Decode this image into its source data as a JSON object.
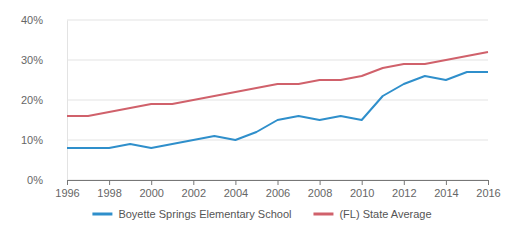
{
  "chart_data": {
    "type": "line",
    "x": [
      1996,
      1997,
      1998,
      1999,
      2000,
      2001,
      2002,
      2003,
      2004,
      2005,
      2006,
      2007,
      2008,
      2009,
      2010,
      2011,
      2012,
      2013,
      2014,
      2015,
      2016
    ],
    "series": [
      {
        "name": "Boyette Springs Elementary School",
        "color": "#2f8fcb",
        "values": [
          8,
          8,
          8,
          9,
          8,
          9,
          10,
          11,
          10,
          12,
          15,
          16,
          15,
          16,
          15,
          21,
          24,
          26,
          25,
          27,
          27
        ]
      },
      {
        "name": "(FL) State Average",
        "color": "#d0616b",
        "values": [
          16,
          16,
          17,
          18,
          19,
          19,
          20,
          21,
          22,
          23,
          24,
          24,
          25,
          25,
          26,
          28,
          29,
          29,
          30,
          31,
          32
        ]
      }
    ],
    "xlim": [
      1996,
      2016
    ],
    "xticks": [
      1996,
      1998,
      2000,
      2002,
      2004,
      2006,
      2008,
      2010,
      2012,
      2014,
      2016
    ],
    "ylim": [
      0,
      40
    ],
    "yticks": [
      {
        "value": 0,
        "label": "0%"
      },
      {
        "value": 10,
        "label": "10%"
      },
      {
        "value": 20,
        "label": "20%"
      },
      {
        "value": 30,
        "label": "30%"
      },
      {
        "value": 40,
        "label": "40%"
      }
    ],
    "grid": true,
    "legend": "bottom"
  }
}
